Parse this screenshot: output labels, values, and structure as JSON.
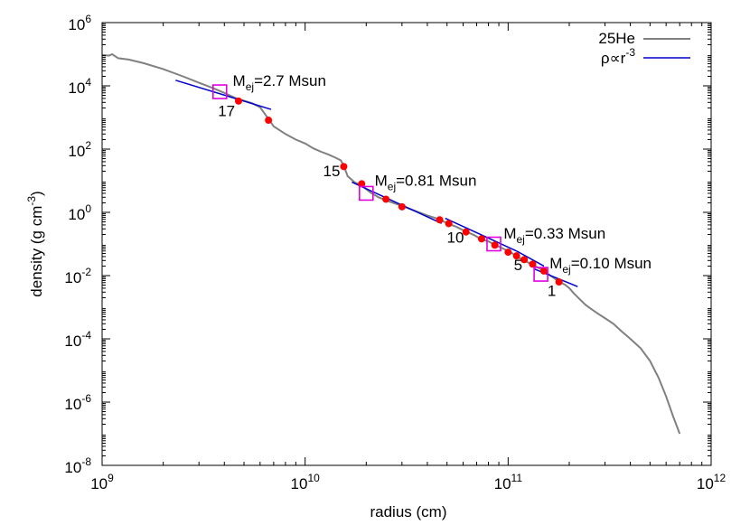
{
  "chart_data": {
    "type": "line",
    "title": "",
    "xlabel": "radius (cm)",
    "ylabel_parts": [
      "density (g cm",
      "-3",
      ")"
    ],
    "x_scale": "log",
    "y_scale": "log",
    "xlim": [
      1000000000.0,
      1000000000000.0
    ],
    "ylim": [
      1e-08,
      1000000.0
    ],
    "legend_position": "top-right",
    "grid": false,
    "x_ticks": [
      {
        "value": 1000000000.0,
        "base": "10",
        "exp": "9"
      },
      {
        "value": 10000000000.0,
        "base": "10",
        "exp": "10"
      },
      {
        "value": 100000000000.0,
        "base": "10",
        "exp": "11"
      },
      {
        "value": 1000000000000.0,
        "base": "10",
        "exp": "12"
      }
    ],
    "y_ticks": [
      {
        "value": 1000000.0,
        "base": "10",
        "exp": "6"
      },
      {
        "value": 10000.0,
        "base": "10",
        "exp": "4"
      },
      {
        "value": 100.0,
        "base": "10",
        "exp": "2"
      },
      {
        "value": 1,
        "base": "10",
        "exp": "0"
      },
      {
        "value": 0.01,
        "base": "10",
        "exp": "-2"
      },
      {
        "value": 0.0001,
        "base": "10",
        "exp": "-4"
      },
      {
        "value": 1e-06,
        "base": "10",
        "exp": "-6"
      },
      {
        "value": 1e-08,
        "base": "10",
        "exp": "-8"
      }
    ],
    "series": [
      {
        "name": "25He",
        "color": "#808080",
        "points": [
          [
            1000000000.0,
            95000.0
          ],
          [
            1080000000.0,
            90000.0
          ],
          [
            1120000000.0,
            100000.0
          ],
          [
            1200000000.0,
            75000.0
          ],
          [
            1350000000.0,
            68000.0
          ],
          [
            1600000000.0,
            52000.0
          ],
          [
            2000000000.0,
            34000.0
          ],
          [
            2500000000.0,
            20000.0
          ],
          [
            3000000000.0,
            12500.0
          ],
          [
            3500000000.0,
            8600.0
          ],
          [
            4000000000.0,
            6000.0
          ],
          [
            4500000000.0,
            4200.0
          ],
          [
            5000000000.0,
            3400.0
          ],
          [
            5500000000.0,
            2800.0
          ],
          [
            6000000000.0,
            2100.0
          ],
          [
            6600000000.0,
            900
          ],
          [
            7000000000.0,
            520
          ],
          [
            8000000000.0,
            300
          ],
          [
            9000000000.0,
            200
          ],
          [
            10000000000.0,
            150
          ],
          [
            11000000000.0,
            105
          ],
          [
            12000000000.0,
            82
          ],
          [
            13000000000.0,
            68
          ],
          [
            14000000000.0,
            55
          ],
          [
            15000000000.0,
            44
          ],
          [
            15500000000.0,
            30
          ],
          [
            16200000000.0,
            14
          ],
          [
            17500000000.0,
            9
          ],
          [
            19000000000.0,
            7
          ],
          [
            21000000000.0,
            4.2
          ],
          [
            23000000000.0,
            3
          ],
          [
            26000000000.0,
            2.2
          ],
          [
            30000000000.0,
            1.6
          ],
          [
            35000000000.0,
            1.1
          ],
          [
            40000000000.0,
            0.8
          ],
          [
            46000000000.0,
            0.6
          ],
          [
            50000000000.0,
            0.45
          ],
          [
            55000000000.0,
            0.36
          ],
          [
            61000000000.0,
            0.26
          ],
          [
            68000000000.0,
            0.19
          ],
          [
            74000000000.0,
            0.14
          ],
          [
            80000000000.0,
            0.12
          ],
          [
            86000000000.0,
            0.095
          ],
          [
            95000000000.0,
            0.07
          ],
          [
            103000000000.0,
            0.055
          ],
          [
            110000000000.0,
            0.04
          ],
          [
            120000000000.0,
            0.03
          ],
          [
            132000000000.0,
            0.022
          ],
          [
            145000000000.0,
            0.016
          ],
          [
            155000000000.0,
            0.012
          ],
          [
            170000000000.0,
            0.008
          ],
          [
            180000000000.0,
            0.0062
          ],
          [
            190000000000.0,
            0.0052
          ],
          [
            200000000000.0,
            0.004
          ],
          [
            210000000000.0,
            0.0028
          ],
          [
            225000000000.0,
            0.0018
          ],
          [
            240000000000.0,
            0.0012
          ],
          [
            255000000000.0,
            0.0009
          ],
          [
            280000000000.0,
            0.0006
          ],
          [
            300000000000.0,
            0.00045
          ],
          [
            330000000000.0,
            0.0003
          ],
          [
            360000000000.0,
            0.00018
          ],
          [
            400000000000.0,
            0.0001
          ],
          [
            450000000000.0,
            5e-05
          ],
          [
            500000000000.0,
            2e-05
          ],
          [
            550000000000.0,
            6e-06
          ],
          [
            600000000000.0,
            1.5e-06
          ],
          [
            650000000000.0,
            3.5e-07
          ],
          [
            700000000000.0,
            1e-07
          ]
        ]
      },
      {
        "name": "ρ∝r",
        "name_sup": "-3",
        "color": "#0000cc",
        "segments": [
          [
            [
              2300000000.0,
              15000.0
            ],
            [
              6800000000.0,
              1800.0
            ]
          ],
          [
            [
              17000000000.0,
              9.0
            ],
            [
              47000000000.0,
              0.45
            ]
          ],
          [
            [
              49000000000.0,
              0.65
            ],
            [
              110000000000.0,
              0.06
            ]
          ],
          [
            [
              110000000000.0,
              0.06
            ],
            [
              150000000000.0,
              0.02
            ]
          ],
          [
            [
              135000000000.0,
              0.016
            ],
            [
              220000000000.0,
              0.0045
            ]
          ]
        ]
      }
    ],
    "markers": [
      [
        4700000000.0,
        3300.0
      ],
      [
        6600000000.0,
        820
      ],
      [
        15500000000.0,
        28
      ],
      [
        19000000000.0,
        8.0
      ],
      [
        25000000000.0,
        2.6
      ],
      [
        30000000000.0,
        1.5
      ],
      [
        46000000000.0,
        0.58
      ],
      [
        51000000000.0,
        0.44
      ],
      [
        62000000000.0,
        0.24
      ],
      [
        74000000000.0,
        0.145
      ],
      [
        86000000000.0,
        0.092
      ],
      [
        100000000000.0,
        0.055
      ],
      [
        110000000000.0,
        0.042
      ],
      [
        120000000000.0,
        0.032
      ],
      [
        132000000000.0,
        0.023
      ],
      [
        150000000000.0,
        0.014
      ],
      [
        178000000000.0,
        0.0063
      ]
    ],
    "mass_boxes": [
      {
        "x": 3800000000.0,
        "y": 6500.0
      },
      {
        "x": 20000000000.0,
        "y": 4.0
      },
      {
        "x": 85000000000.0,
        "y": 0.1
      },
      {
        "x": 145000000000.0,
        "y": 0.011
      }
    ],
    "mass_labels": [
      {
        "x": 4400000000.0,
        "y": 10000.0,
        "prefix": "M",
        "sub": "ej",
        "value": "=2.7 Msun"
      },
      {
        "x": 22000000000.0,
        "y": 7.0,
        "prefix": "M",
        "sub": "ej",
        "value": "=0.81 Msun"
      },
      {
        "x": 95000000000.0,
        "y": 0.15,
        "prefix": "M",
        "sub": "ej",
        "value": "=0.33 Msun"
      },
      {
        "x": 160000000000.0,
        "y": 0.017,
        "prefix": "M",
        "sub": "ej",
        "value": "=0.10 Msun"
      }
    ],
    "point_labels": [
      {
        "x": 4100000000.0,
        "y": 1100.0,
        "text": "17"
      },
      {
        "x": 13500000000.0,
        "y": 14,
        "text": "15"
      },
      {
        "x": 55000000000.0,
        "y": 0.11,
        "text": "10"
      },
      {
        "x": 112000000000.0,
        "y": 0.015,
        "text": "5"
      },
      {
        "x": 164000000000.0,
        "y": 0.0023,
        "text": "1"
      }
    ]
  }
}
